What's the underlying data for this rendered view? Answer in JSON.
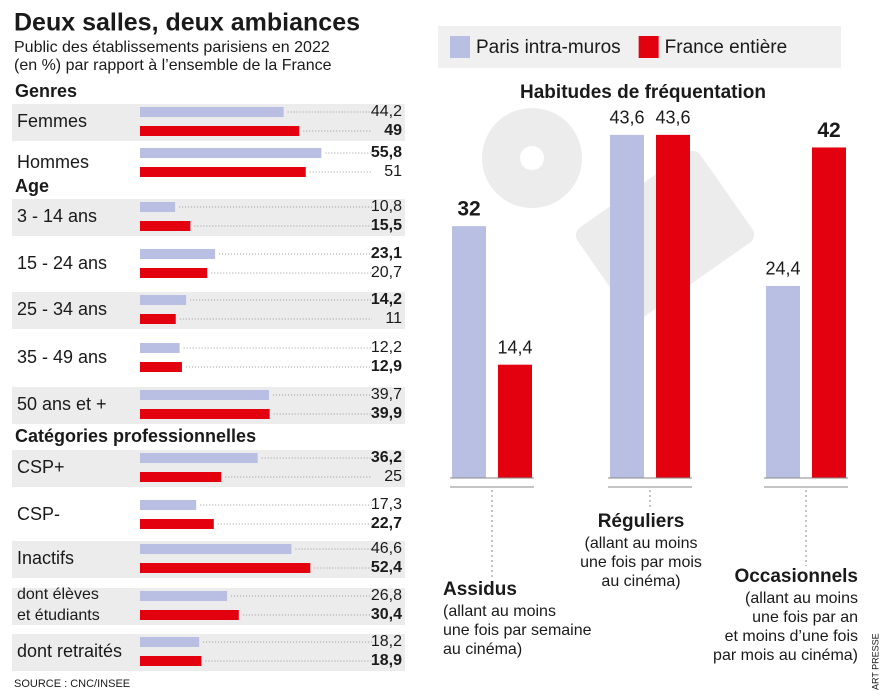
{
  "title": "Deux salles, deux ambiances",
  "subtitle": "Public des établissements parisiens en 2022\n(en %) par rapport à l’ensemble de la France",
  "source": "SOURCE : CNC/INSEE",
  "credit": "ART PRESSE",
  "chart_data": [
    {
      "type": "hbar",
      "sections": [
        {
          "title": "Genres",
          "categories": [
            "Femmes",
            "Hommes"
          ]
        },
        {
          "title": "Age",
          "categories": [
            "3 - 14 ans",
            "15 - 24 ans",
            "25 - 34 ans",
            "35 - 49 ans",
            "50 ans  et +"
          ]
        },
        {
          "title": "Catégories professionnelles",
          "categories": [
            "CSP+",
            "CSP-",
            "Inactifs",
            "dont élèves\net étudiants",
            "dont retraités"
          ]
        }
      ],
      "series": [
        {
          "name": "Paris intra-muros",
          "color": "#b8bfe2",
          "values": [
            44.2,
            55.8,
            10.8,
            23.1,
            14.2,
            12.2,
            39.7,
            36.2,
            17.3,
            46.6,
            26.8,
            18.2
          ],
          "value_labels": [
            "44,2",
            "55,8",
            "10,8",
            "23,1",
            "14,2",
            "12,2",
            "39,7",
            "36,2",
            "17,3",
            "46,6",
            "26,8",
            "18,2"
          ]
        },
        {
          "name": "France entière",
          "color": "#e3000f",
          "values": [
            49,
            51,
            15.5,
            20.7,
            11,
            12.9,
            39.9,
            25,
            22.7,
            52.4,
            30.4,
            18.9
          ],
          "value_labels": [
            "49",
            "51",
            "15,5",
            "20,7",
            "11",
            "12,9",
            "39,9",
            "25",
            "22,7",
            "52,4",
            "30,4",
            "18,9"
          ]
        }
      ]
    },
    {
      "type": "bar",
      "title": "Habitudes de fréquentation",
      "categories": [
        "Assidus",
        "Réguliers",
        "Occasionnels"
      ],
      "descriptions": [
        "(allant au moins\nune fois par semaine\nau cinéma)",
        "(allant au moins\nune fois par mois\nau cinéma)",
        "(allant au moins\nune fois par an\net moins d’une fois\npar mois au cinéma)"
      ],
      "series": [
        {
          "name": "Paris intra-muros",
          "color": "#b8bfe2",
          "values": [
            32,
            43.6,
            24.4
          ],
          "value_labels": [
            "32",
            "43,6",
            "24,4"
          ]
        },
        {
          "name": "France entière",
          "color": "#e3000f",
          "values": [
            14.4,
            43.6,
            42
          ],
          "value_labels": [
            "14,4",
            "43,6",
            "42"
          ]
        }
      ]
    }
  ]
}
